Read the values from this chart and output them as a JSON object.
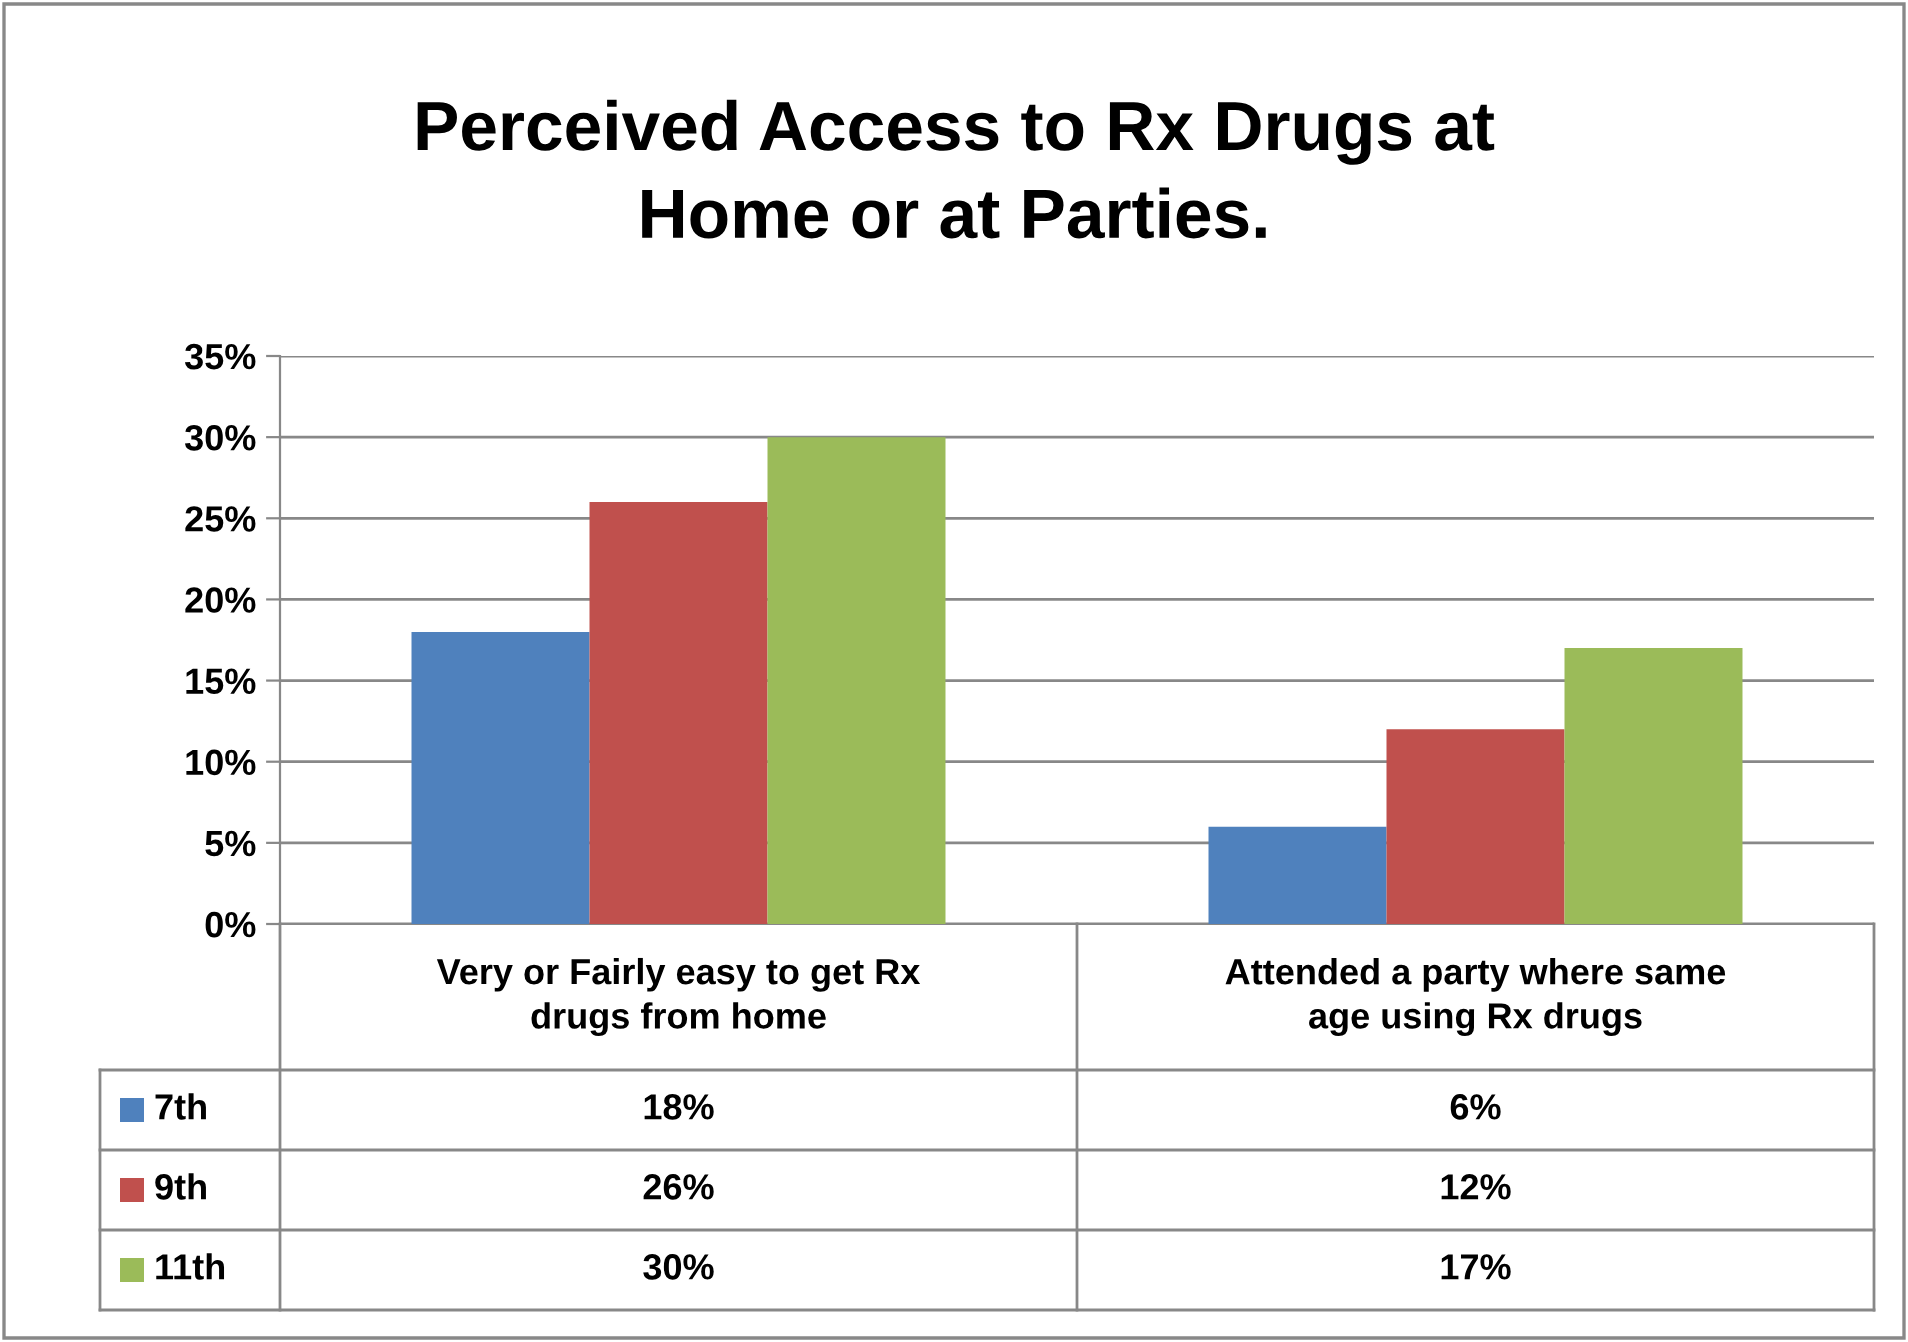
{
  "chart_data": {
    "type": "bar",
    "title": "Perceived Access to Rx Drugs at\nHome or at Parties.",
    "categories": [
      "Very or Fairly easy to get Rx\ndrugs from home",
      "Attended a party where same\nage using Rx drugs"
    ],
    "series": [
      {
        "name": "7th",
        "color": "#4f81bd",
        "values": [
          18,
          6
        ]
      },
      {
        "name": "9th",
        "color": "#c0504d",
        "values": [
          26,
          12
        ]
      },
      {
        "name": "11th",
        "color": "#9bbb59",
        "values": [
          30,
          17
        ]
      }
    ],
    "value_labels": [
      [
        "18%",
        "6%"
      ],
      [
        "26%",
        "12%"
      ],
      [
        "30%",
        "17%"
      ]
    ],
    "ylim": [
      0,
      35
    ],
    "yticks": [
      {
        "value": 0,
        "label": "0%"
      },
      {
        "value": 5,
        "label": "5%"
      },
      {
        "value": 10,
        "label": "10%"
      },
      {
        "value": 15,
        "label": "15%"
      },
      {
        "value": 20,
        "label": "20%"
      },
      {
        "value": 25,
        "label": "25%"
      },
      {
        "value": 30,
        "label": "30%"
      },
      {
        "value": 35,
        "label": "35%"
      }
    ],
    "grid": "y",
    "legend": "bottom"
  }
}
